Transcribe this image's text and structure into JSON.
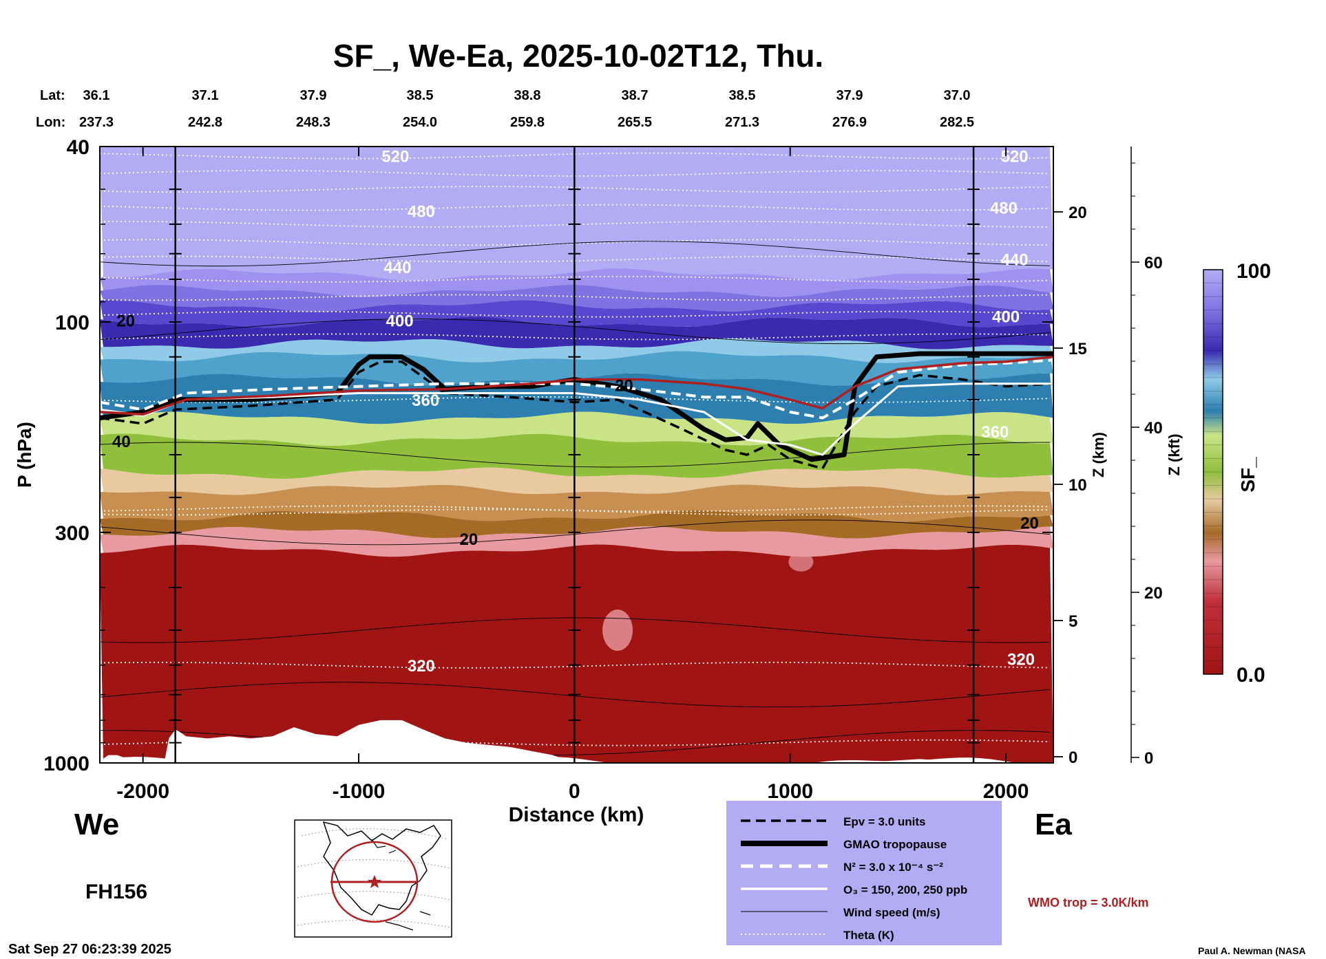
{
  "chart_data": {
    "type": "heatmap",
    "title": "SF_, We-Ea, 2025-10-02T12, Thu.",
    "xlabel": "Distance (km)",
    "ylabel": "P (hPa)",
    "y2label": "Z (km)",
    "y3label": "Z (kft)",
    "colorbar_label": "SF_",
    "xlim": [
      -2200,
      2220
    ],
    "x_ticks": [
      -2000,
      -1000,
      0,
      1000,
      2000
    ],
    "x_tick_labels": [
      "-2000",
      "-1000",
      "0",
      "1000",
      "2000"
    ],
    "y_ticks": [
      40,
      100,
      300,
      1000
    ],
    "y_tick_labels": [
      "40",
      "100",
      "300",
      "1000"
    ],
    "zkm_ticks": [
      0,
      5,
      10,
      15,
      20
    ],
    "zkm_tick_labels": [
      "0",
      "5",
      "10",
      "15",
      "20"
    ],
    "zkft_ticks": [
      0,
      20,
      40,
      60
    ],
    "zkft_tick_labels": [
      "0",
      "20",
      "40",
      "60"
    ],
    "colorbar_range": [
      0.0,
      100
    ],
    "colorbar_tick_labels": [
      "100",
      "0.0"
    ],
    "lat_label": "Lat:",
    "lon_label": "Lon:",
    "lat_values": [
      "36.1",
      "37.1",
      "37.9",
      "38.5",
      "38.8",
      "38.7",
      "38.5",
      "37.9",
      "37.0"
    ],
    "lon_values": [
      "237.3",
      "242.8",
      "248.3",
      "254.0",
      "259.8",
      "265.5",
      "271.3",
      "276.9",
      "282.5"
    ],
    "vertical_lines_km": [
      -1850,
      0,
      1850
    ],
    "theta_labels": [
      {
        "text": "520",
        "x": -830,
        "p": 42
      },
      {
        "text": "480",
        "x": -710,
        "p": 56
      },
      {
        "text": "440",
        "x": -820,
        "p": 75
      },
      {
        "text": "400",
        "x": -810,
        "p": 99
      },
      {
        "text": "360",
        "x": -690,
        "p": 150
      },
      {
        "text": "320",
        "x": -710,
        "p": 600
      },
      {
        "text": "520",
        "x": 2040,
        "p": 42
      },
      {
        "text": "480",
        "x": 1990,
        "p": 55
      },
      {
        "text": "440",
        "x": 2040,
        "p": 72
      },
      {
        "text": "400",
        "x": 2000,
        "p": 97
      },
      {
        "text": "360",
        "x": 1950,
        "p": 177
      },
      {
        "text": "320",
        "x": 2070,
        "p": 580
      }
    ],
    "wind_labels": [
      {
        "text": "20",
        "x": -2080,
        "p": 99
      },
      {
        "text": "40",
        "x": -2100,
        "p": 186
      },
      {
        "text": "20",
        "x": -490,
        "p": 310
      },
      {
        "text": "20",
        "x": 230,
        "p": 139
      },
      {
        "text": "20",
        "x": 2110,
        "p": 285
      }
    ],
    "series": [
      {
        "name": "GMAO tropopause",
        "x": [
          -2200,
          -2000,
          -1850,
          -1500,
          -1100,
          -1000,
          -950,
          -800,
          -700,
          -600,
          -400,
          -200,
          0,
          200,
          400,
          600,
          700,
          800,
          850,
          950,
          1100,
          1250,
          1300,
          1400,
          1600,
          2000,
          2220
        ],
        "p": [
          165,
          160,
          150,
          150,
          145,
          125,
          120,
          120,
          128,
          142,
          140,
          140,
          135,
          140,
          150,
          175,
          185,
          183,
          170,
          190,
          205,
          200,
          140,
          120,
          118,
          118,
          118
        ]
      },
      {
        "name": "Epv = 3.0 units",
        "x": [
          -2200,
          -2000,
          -1850,
          -1500,
          -1100,
          -1000,
          -900,
          -800,
          -600,
          -300,
          0,
          200,
          500,
          700,
          800,
          900,
          1000,
          1150,
          1300,
          1400,
          1600,
          1800,
          2000,
          2220
        ],
        "p": [
          165,
          170,
          158,
          155,
          150,
          130,
          123,
          123,
          145,
          148,
          152,
          150,
          175,
          195,
          200,
          190,
          205,
          215,
          160,
          140,
          132,
          135,
          140,
          138
        ]
      },
      {
        "name": "N² = 3.0 x 10⁻⁴ s⁻²",
        "x": [
          -2200,
          -2000,
          -1800,
          -1400,
          -1000,
          -600,
          -200,
          0,
          300,
          600,
          800,
          1000,
          1150,
          1300,
          1500,
          1800,
          2000,
          2220
        ],
        "p": [
          152,
          158,
          145,
          142,
          140,
          138,
          138,
          138,
          142,
          148,
          148,
          160,
          165,
          150,
          130,
          125,
          124,
          122
        ]
      },
      {
        "name": "O₃ = 150, 200, 250 ppb",
        "x": [
          -2200,
          -2000,
          -1800,
          -1400,
          -1000,
          -600,
          -200,
          0,
          300,
          600,
          800,
          1000,
          1150,
          1300,
          1500,
          1800,
          2000,
          2220
        ],
        "p": [
          158,
          163,
          150,
          148,
          145,
          145,
          145,
          145,
          150,
          160,
          185,
          190,
          200,
          170,
          140,
          138,
          138,
          138
        ]
      },
      {
        "name": "WMO trop = 3.0K/km",
        "x": [
          -2200,
          -2000,
          -1800,
          -1400,
          -1000,
          -600,
          -200,
          0,
          300,
          600,
          800,
          1000,
          1150,
          1300,
          1500,
          1800,
          2000,
          2220
        ],
        "p": [
          160,
          162,
          150,
          147,
          143,
          142,
          138,
          135,
          135,
          138,
          142,
          150,
          157,
          140,
          128,
          124,
          123,
          120
        ]
      }
    ],
    "color_scale": [
      {
        "p_top": 40,
        "p_bot": 78,
        "color": "#b3acf5"
      },
      {
        "p_top": 78,
        "p_bot": 85,
        "color": "#9f91ef"
      },
      {
        "p_top": 85,
        "p_bot": 92,
        "color": "#7f72e3"
      },
      {
        "p_top": 92,
        "p_bot": 100,
        "color": "#5848cf"
      },
      {
        "p_top": 100,
        "p_bot": 112,
        "color": "#3a2ab0"
      },
      {
        "p_top": 112,
        "p_bot": 120,
        "color": "#8fcbe8"
      },
      {
        "p_top": 120,
        "p_bot": 135,
        "color": "#4fa2cc"
      },
      {
        "p_top": 135,
        "p_bot": 165,
        "color": "#2d7fb0"
      },
      {
        "p_top": 165,
        "p_bot": 185,
        "color": "#c9e486"
      },
      {
        "p_top": 185,
        "p_bot": 220,
        "color": "#8fbf3b"
      },
      {
        "p_top": 220,
        "p_bot": 240,
        "color": "#e8c9a0"
      },
      {
        "p_top": 240,
        "p_bot": 275,
        "color": "#c89050"
      },
      {
        "p_top": 275,
        "p_bot": 300,
        "color": "#a56a26"
      },
      {
        "p_top": 300,
        "p_bot": 330,
        "color": "#e89aa0"
      },
      {
        "p_top": 330,
        "p_bot": 1000,
        "color": "#a01414"
      }
    ]
  },
  "labels": {
    "west": "We",
    "east": "Ea",
    "forecast_hour": "FH156",
    "timestamp": "Sat Sep 27 06:23:39 2025",
    "credit": "Paul A. Newman (NASA",
    "wmo": "WMO trop = 3.0K/km"
  },
  "legend": {
    "items": [
      {
        "label": "Epv = 3.0 units",
        "style": "dash-black"
      },
      {
        "label": "GMAO tropopause",
        "style": "thick-black"
      },
      {
        "label": "N² = 3.0 x 10⁻⁴ s⁻²",
        "style": "dash-white"
      },
      {
        "label": "O₃ = 150, 200, 250 ppb",
        "style": "solid-white"
      },
      {
        "label": "Wind speed (m/s)",
        "style": "thin-black"
      },
      {
        "label": "Theta (K)",
        "style": "dot-white"
      }
    ]
  },
  "colors": {
    "legend_bg": "#b3acf5",
    "wmo": "#b01f1f",
    "ground": "#ffffff"
  }
}
